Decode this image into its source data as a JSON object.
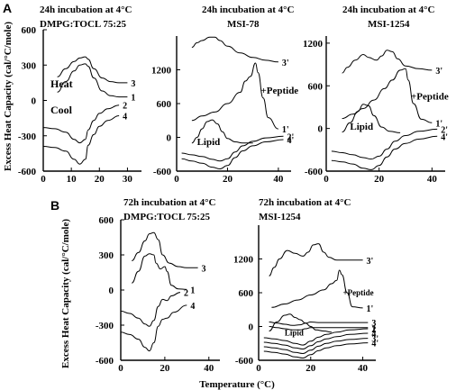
{
  "figure": {
    "panel_labels": [
      "A",
      "B"
    ],
    "ylabel": "Excess Heat Capacity (cal/°C/mole)",
    "ylabel_b": "Excess Heat Capacity (cal/°C/mole)",
    "xlabel": "Temperature (°C)",
    "line_color": "#000000"
  },
  "chart_data": [
    {
      "type": "line",
      "title": "24h incubation at 4°C",
      "subtitle": "DMPG:TOCL 75:25",
      "xlim": [
        0,
        35
      ],
      "ylim": [
        -600,
        600
      ],
      "xticks": [
        "0",
        "10",
        "20",
        "30"
      ],
      "yticks": [
        "600",
        "300",
        "0",
        "-300",
        "-600"
      ],
      "annotations": [
        "Heat",
        "Cool"
      ],
      "series": [
        {
          "name": "3",
          "x": [
            5,
            8,
            11,
            13,
            15,
            16,
            18,
            21,
            24,
            27,
            30
          ],
          "y": [
            200,
            270,
            330,
            360,
            370,
            350,
            270,
            190,
            160,
            150,
            150
          ]
        },
        {
          "name": "1",
          "x": [
            5,
            8,
            11,
            13,
            15,
            16,
            18,
            21,
            24,
            27,
            30
          ],
          "y": [
            70,
            160,
            250,
            300,
            310,
            290,
            190,
            80,
            40,
            30,
            30
          ]
        },
        {
          "name": "2",
          "x": [
            0,
            4,
            8,
            11,
            13,
            15,
            16,
            18,
            20,
            23,
            27
          ],
          "y": [
            -230,
            -240,
            -270,
            -330,
            -360,
            -330,
            -250,
            -170,
            -110,
            -70,
            -40
          ]
        },
        {
          "name": "4",
          "x": [
            0,
            4,
            8,
            11,
            13,
            15,
            16,
            18,
            20,
            23,
            27
          ],
          "y": [
            -390,
            -400,
            -430,
            -500,
            -540,
            -500,
            -380,
            -290,
            -220,
            -170,
            -130
          ]
        }
      ]
    },
    {
      "type": "line",
      "title": "24h incubation at 4°C",
      "subtitle": "MSI-78",
      "xlim": [
        0,
        45
      ],
      "ylim": [
        -600,
        1800
      ],
      "xticks": [
        "0",
        "20",
        "40"
      ],
      "yticks": [
        "1200",
        "600",
        "0",
        "-600"
      ],
      "annotations": [
        "Lipid",
        "+Peptide"
      ],
      "series": [
        {
          "name": "3'",
          "x": [
            6,
            8,
            10,
            13,
            15,
            17,
            20,
            25,
            30,
            35,
            40
          ],
          "y": [
            1600,
            1680,
            1720,
            1780,
            1780,
            1720,
            1620,
            1500,
            1420,
            1370,
            1340
          ]
        },
        {
          "name": "1'",
          "x": [
            6,
            10,
            15,
            20,
            25,
            27,
            29,
            31,
            32,
            34,
            36,
            40
          ],
          "y": [
            300,
            380,
            450,
            600,
            800,
            1000,
            1080,
            1320,
            1150,
            700,
            350,
            150
          ]
        },
        {
          "name": "Lipid",
          "x": [
            6,
            8,
            10,
            12,
            14,
            16,
            18,
            20,
            23,
            26,
            30
          ],
          "y": [
            -100,
            0,
            150,
            280,
            310,
            240,
            100,
            -20,
            -80,
            -100,
            -100
          ]
        },
        {
          "name": "2'",
          "x": [
            2,
            6,
            10,
            14,
            17,
            20,
            23,
            26,
            30,
            35,
            42
          ],
          "y": [
            -280,
            -310,
            -340,
            -390,
            -420,
            -380,
            -260,
            -150,
            -70,
            -10,
            20
          ]
        },
        {
          "name": "4'",
          "x": [
            2,
            6,
            10,
            14,
            17,
            20,
            23,
            26,
            30,
            35,
            42
          ],
          "y": [
            -380,
            -420,
            -460,
            -530,
            -560,
            -500,
            -360,
            -240,
            -150,
            -80,
            -40
          ]
        }
      ]
    },
    {
      "type": "line",
      "title": "24h incubation at 4°C",
      "subtitle": "MSI-1254",
      "xlim": [
        0,
        45
      ],
      "ylim": [
        -600,
        1300
      ],
      "xticks": [
        "0",
        "20",
        "40"
      ],
      "yticks": [
        "1200",
        "600",
        "0",
        "-600"
      ],
      "annotations": [
        "Lipid",
        "+Peptide"
      ],
      "series": [
        {
          "name": "3'",
          "x": [
            6,
            8,
            11,
            14,
            16,
            19,
            21,
            23,
            25,
            27,
            30,
            35,
            40
          ],
          "y": [
            780,
            860,
            960,
            1040,
            1000,
            960,
            1020,
            1100,
            1080,
            980,
            880,
            840,
            820
          ]
        },
        {
          "name": "1'",
          "x": [
            6,
            10,
            14,
            18,
            22,
            25,
            28,
            30,
            31,
            33,
            36,
            40
          ],
          "y": [
            140,
            200,
            280,
            400,
            560,
            680,
            820,
            840,
            680,
            350,
            130,
            80
          ]
        },
        {
          "name": "Lipid",
          "x": [
            6,
            9,
            12,
            14,
            16,
            18,
            21,
            24,
            28
          ],
          "y": [
            -50,
            80,
            240,
            340,
            320,
            180,
            20,
            -40,
            -60
          ]
        },
        {
          "name": "2'",
          "x": [
            2,
            6,
            10,
            14,
            17,
            20,
            23,
            26,
            30,
            35,
            42
          ],
          "y": [
            -320,
            -340,
            -370,
            -410,
            -430,
            -390,
            -290,
            -180,
            -100,
            -40,
            -10
          ]
        },
        {
          "name": "4'",
          "x": [
            2,
            6,
            10,
            14,
            17,
            20,
            23,
            26,
            30,
            35,
            42
          ],
          "y": [
            -450,
            -470,
            -500,
            -560,
            -580,
            -520,
            -400,
            -290,
            -210,
            -150,
            -110
          ]
        }
      ]
    },
    {
      "type": "line",
      "title": "72h incubation at 4°C",
      "subtitle": "DMPG:TOCL 75:25",
      "xlim": [
        0,
        45
      ],
      "ylim": [
        -600,
        600
      ],
      "xticks": [
        "0",
        "20",
        "40"
      ],
      "yticks": [
        "600",
        "300",
        "0",
        "-300",
        "-600"
      ],
      "series": [
        {
          "name": "3",
          "x": [
            5,
            8,
            11,
            13,
            15,
            17,
            19,
            22,
            26,
            30,
            35
          ],
          "y": [
            250,
            320,
            420,
            480,
            490,
            430,
            300,
            230,
            200,
            190,
            190
          ]
        },
        {
          "name": "1",
          "x": [
            5,
            8,
            11,
            13,
            15,
            16,
            18,
            20,
            21,
            23,
            26,
            30
          ],
          "y": [
            60,
            160,
            290,
            310,
            300,
            230,
            180,
            200,
            160,
            40,
            10,
            5
          ]
        },
        {
          "name": "2",
          "x": [
            0,
            4,
            8,
            11,
            13,
            15,
            17,
            19,
            21,
            23,
            27
          ],
          "y": [
            -180,
            -200,
            -240,
            -290,
            -310,
            -260,
            -140,
            -80,
            -90,
            -50,
            -20
          ]
        },
        {
          "name": "4",
          "x": [
            0,
            4,
            8,
            11,
            13,
            15,
            17,
            19,
            21,
            24,
            30
          ],
          "y": [
            -360,
            -380,
            -420,
            -490,
            -520,
            -450,
            -310,
            -250,
            -240,
            -190,
            -130
          ]
        }
      ]
    },
    {
      "type": "line",
      "title": "72h incubation at 4°C",
      "subtitle": "MSI-1254",
      "xlim": [
        0,
        45
      ],
      "ylim": [
        -600,
        1800
      ],
      "xticks": [
        "0",
        "20",
        "40"
      ],
      "yticks": [
        "1200",
        "600",
        "0",
        "-600"
      ],
      "annotations": [
        "Lipid",
        "+Peptide"
      ],
      "series": [
        {
          "name": "3'",
          "x": [
            4,
            6,
            8,
            11,
            14,
            17,
            19,
            21,
            23,
            25,
            27,
            30,
            35,
            40
          ],
          "y": [
            900,
            1050,
            1200,
            1350,
            1300,
            1250,
            1320,
            1450,
            1470,
            1320,
            1230,
            1180,
            1180,
            1180
          ]
        },
        {
          "name": "1'",
          "x": [
            5,
            10,
            15,
            20,
            25,
            28,
            30,
            31,
            32,
            34,
            36,
            40
          ],
          "y": [
            340,
            400,
            470,
            560,
            650,
            760,
            820,
            1000,
            920,
            600,
            350,
            330
          ]
        },
        {
          "name": "Lipid",
          "x": [
            4,
            7,
            10,
            12,
            14,
            16,
            18,
            20,
            22,
            25,
            28
          ],
          "y": [
            -80,
            80,
            200,
            220,
            160,
            120,
            60,
            0,
            -60,
            -80,
            -100
          ]
        },
        {
          "name": "3",
          "x": [
            4,
            7,
            10,
            13,
            16,
            18,
            20,
            23,
            26,
            30,
            35,
            42
          ],
          "y": [
            80,
            60,
            40,
            20,
            30,
            60,
            80,
            70,
            70,
            70,
            70,
            70
          ]
        },
        {
          "name": "1",
          "x": [
            4,
            7,
            10,
            13,
            16,
            18,
            20,
            23,
            26,
            30,
            35,
            42
          ],
          "y": [
            0,
            -20,
            -40,
            -60,
            -60,
            -40,
            -20,
            -20,
            -20,
            -20,
            -20,
            -20
          ]
        },
        {
          "name": "2",
          "x": [
            2,
            6,
            10,
            14,
            17,
            20,
            23,
            26,
            30,
            35,
            42
          ],
          "y": [
            -200,
            -220,
            -250,
            -300,
            -330,
            -260,
            -190,
            -140,
            -100,
            -60,
            -40
          ]
        },
        {
          "name": "4",
          "x": [
            2,
            6,
            10,
            14,
            17,
            20,
            23,
            26,
            30,
            35,
            42
          ],
          "y": [
            -280,
            -300,
            -330,
            -380,
            -400,
            -340,
            -270,
            -220,
            -180,
            -140,
            -120
          ]
        },
        {
          "name": "3'",
          "x": [
            2,
            6,
            10,
            14,
            17,
            20,
            23,
            26,
            30,
            35,
            42
          ],
          "y": [
            -360,
            -380,
            -410,
            -460,
            -480,
            -420,
            -350,
            -300,
            -260,
            -230,
            -210
          ]
        },
        {
          "name": "4'",
          "x": [
            2,
            6,
            10,
            14,
            17,
            20,
            23,
            26,
            30,
            35,
            42
          ],
          "y": [
            -440,
            -460,
            -490,
            -540,
            -560,
            -500,
            -430,
            -380,
            -340,
            -310,
            -290
          ]
        }
      ]
    }
  ]
}
